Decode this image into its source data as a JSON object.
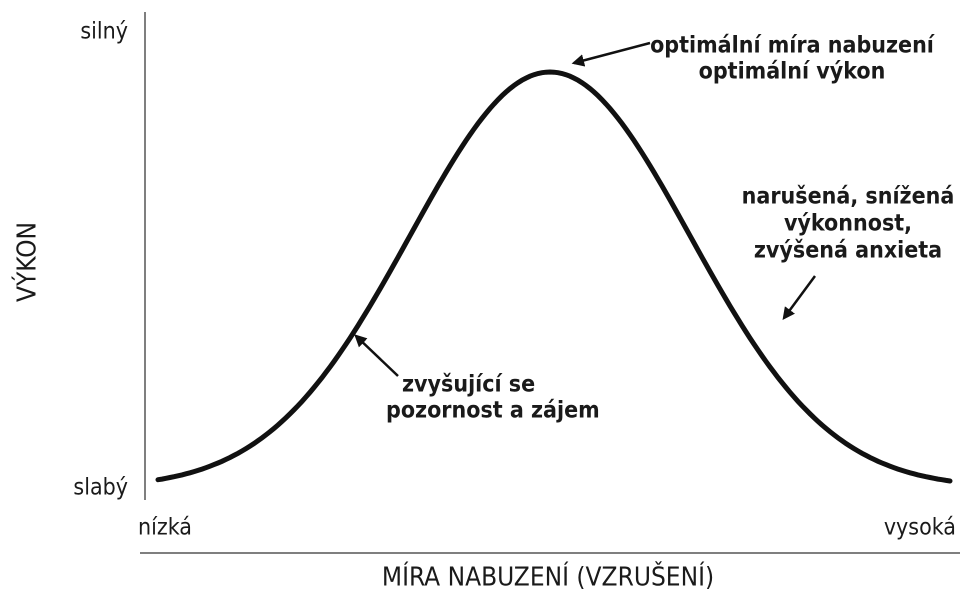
{
  "axes": {
    "y_label": "VÝKON",
    "y_high": "silný",
    "y_low": "slabý",
    "x_label": "MÍRA NABUZENÍ (VZRUŠENÍ)",
    "x_low": "nízká",
    "x_high": "vysoká"
  },
  "annotations": [
    {
      "lines": [
        "optimální míra nabuzení",
        "optimální výkon"
      ]
    },
    {
      "lines": [
        "narušená, snížená",
        "výkonnost,",
        "zvýšená anxieta"
      ]
    },
    {
      "lines": [
        "zvyšující se",
        "pozornost a zájem"
      ]
    }
  ]
}
